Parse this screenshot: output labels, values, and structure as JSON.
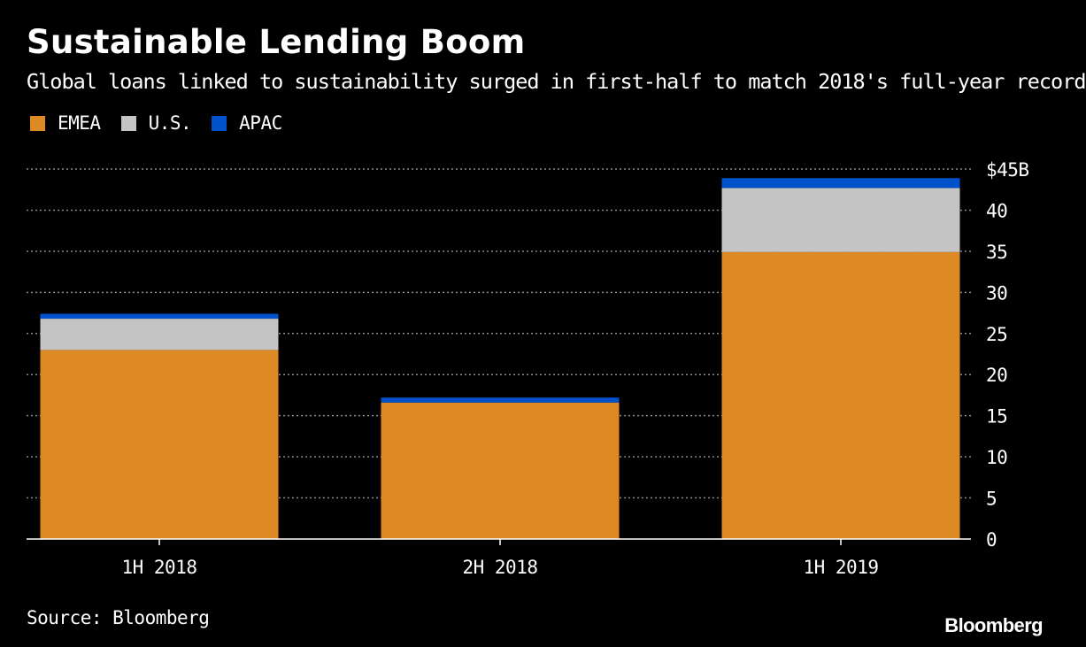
{
  "header": {
    "title": "Sustainable Lending Boom",
    "subtitle": "Global loans linked to sustainability surged in first-half to match 2018's full-year record"
  },
  "footer": {
    "source": "Source: Bloomberg",
    "brand": "Bloomberg"
  },
  "chart_data": {
    "type": "bar",
    "stacked": true,
    "title": "Sustainable Lending Boom",
    "subtitle": "Global loans linked to sustainability surged in first-half to match 2018's full-year record",
    "categories": [
      "1H 2018",
      "2H 2018",
      "1H 2019"
    ],
    "series": [
      {
        "name": "EMEA",
        "color": "#dd8a24",
        "values": [
          23.0,
          16.6,
          34.9
        ]
      },
      {
        "name": "U.S.",
        "color": "#c4c4c4",
        "values": [
          3.8,
          0,
          7.8
        ]
      },
      {
        "name": "APAC",
        "color": "#0052cc",
        "values": [
          0.6,
          0.6,
          1.2
        ]
      }
    ],
    "ylim": [
      0,
      45
    ],
    "yticks": [
      0,
      5,
      10,
      15,
      20,
      25,
      30,
      35,
      40,
      45
    ],
    "ytick_labels": [
      "0",
      "5",
      "10",
      "15",
      "20",
      "25",
      "30",
      "35",
      "40",
      "$45B"
    ],
    "grid": true,
    "legend_position": "top-left",
    "y_axis_side": "right"
  }
}
